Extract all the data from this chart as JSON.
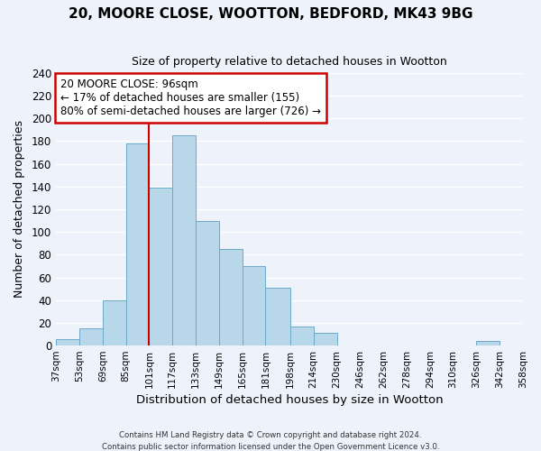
{
  "title": "20, MOORE CLOSE, WOOTTON, BEDFORD, MK43 9BG",
  "subtitle": "Size of property relative to detached houses in Wootton",
  "xlabel": "Distribution of detached houses by size in Wootton",
  "ylabel": "Number of detached properties",
  "footer_line1": "Contains HM Land Registry data © Crown copyright and database right 2024.",
  "footer_line2": "Contains public sector information licensed under the Open Government Licence v3.0.",
  "bin_edges": [
    37,
    53,
    69,
    85,
    101,
    117,
    133,
    149,
    165,
    181,
    198,
    214,
    230,
    246,
    262,
    278,
    294,
    310,
    326,
    342,
    358
  ],
  "bin_labels": [
    "37sqm",
    "53sqm",
    "69sqm",
    "85sqm",
    "101sqm",
    "117sqm",
    "133sqm",
    "149sqm",
    "165sqm",
    "181sqm",
    "198sqm",
    "214sqm",
    "230sqm",
    "246sqm",
    "262sqm",
    "278sqm",
    "294sqm",
    "310sqm",
    "326sqm",
    "342sqm",
    "358sqm"
  ],
  "counts": [
    6,
    15,
    40,
    178,
    139,
    185,
    110,
    85,
    70,
    51,
    17,
    11,
    0,
    0,
    0,
    0,
    0,
    0,
    4,
    0,
    0
  ],
  "bar_color": "#b8d8ea",
  "bar_edge_color": "#6aaac8",
  "vline_x": 101,
  "vline_color": "#cc0000",
  "annotation_title": "20 MOORE CLOSE: 96sqm",
  "annotation_line1": "← 17% of detached houses are smaller (155)",
  "annotation_line2": "80% of semi-detached houses are larger (726) →",
  "annotation_box_color": "#ffffff",
  "annotation_box_edge_color": "#cc0000",
  "ylim": [
    0,
    240
  ],
  "yticks": [
    0,
    20,
    40,
    60,
    80,
    100,
    120,
    140,
    160,
    180,
    200,
    220,
    240
  ],
  "background_color": "#eef2fb"
}
